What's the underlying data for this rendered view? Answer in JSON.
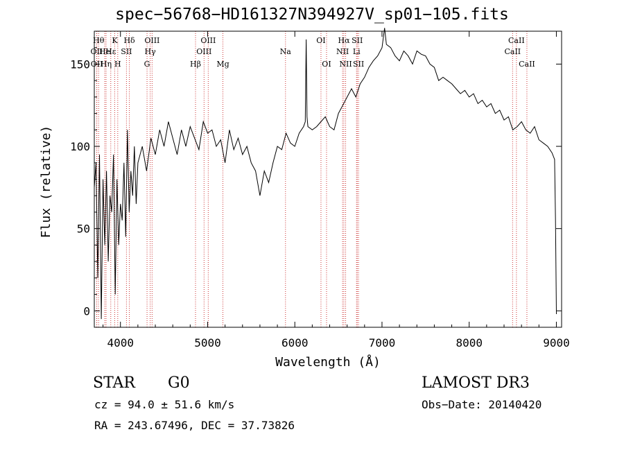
{
  "chart_data": {
    "type": "line",
    "title": "spec−56768−HD161327N394927V_sp01−105.fits",
    "xlabel": "Wavelength (Å)",
    "ylabel": "Flux (relative)",
    "xlim": [
      3700,
      9060
    ],
    "ylim": [
      -10,
      170
    ],
    "x_ticks": [
      4000,
      5000,
      6000,
      7000,
      8000,
      9000
    ],
    "y_ticks": [
      0,
      50,
      100,
      150
    ],
    "series": [
      {
        "name": "flux",
        "x": [
          3700,
          3720,
          3740,
          3760,
          3780,
          3800,
          3820,
          3840,
          3860,
          3880,
          3900,
          3920,
          3940,
          3960,
          3980,
          4000,
          4020,
          4040,
          4060,
          4080,
          4100,
          4120,
          4140,
          4160,
          4180,
          4200,
          4250,
          4300,
          4350,
          4400,
          4450,
          4500,
          4550,
          4600,
          4650,
          4700,
          4750,
          4800,
          4850,
          4900,
          4950,
          5000,
          5050,
          5100,
          5150,
          5200,
          5250,
          5300,
          5350,
          5400,
          5450,
          5500,
          5550,
          5600,
          5650,
          5700,
          5750,
          5800,
          5850,
          5900,
          5950,
          6000,
          6050,
          6100,
          6120,
          6130,
          6140,
          6150,
          6200,
          6250,
          6300,
          6350,
          6400,
          6450,
          6500,
          6550,
          6600,
          6650,
          6700,
          6750,
          6800,
          6850,
          6900,
          6950,
          7000,
          7030,
          7050,
          7100,
          7150,
          7200,
          7250,
          7300,
          7350,
          7400,
          7450,
          7500,
          7550,
          7600,
          7650,
          7700,
          7750,
          7800,
          7850,
          7900,
          7950,
          8000,
          8050,
          8100,
          8150,
          8200,
          8250,
          8300,
          8350,
          8400,
          8450,
          8500,
          8550,
          8600,
          8650,
          8700,
          8750,
          8800,
          8850,
          8900,
          8950,
          8980,
          8990,
          9000
        ],
        "y": [
          75,
          90,
          20,
          95,
          -5,
          80,
          40,
          85,
          30,
          70,
          60,
          95,
          10,
          80,
          40,
          65,
          55,
          90,
          45,
          110,
          60,
          85,
          70,
          100,
          65,
          90,
          100,
          85,
          105,
          95,
          110,
          100,
          115,
          105,
          95,
          110,
          100,
          112,
          105,
          98,
          115,
          108,
          110,
          100,
          104,
          90,
          110,
          98,
          105,
          95,
          100,
          90,
          85,
          70,
          85,
          78,
          90,
          100,
          98,
          108,
          102,
          100,
          108,
          112,
          115,
          165,
          118,
          112,
          110,
          112,
          115,
          118,
          112,
          110,
          120,
          125,
          130,
          135,
          130,
          138,
          142,
          148,
          152,
          155,
          160,
          172,
          162,
          160,
          155,
          152,
          158,
          155,
          150,
          158,
          156,
          155,
          150,
          148,
          140,
          142,
          140,
          138,
          135,
          132,
          134,
          130,
          132,
          126,
          128,
          124,
          126,
          120,
          122,
          116,
          118,
          110,
          112,
          115,
          110,
          108,
          112,
          104,
          102,
          100,
          96,
          92,
          55,
          -2
        ]
      }
    ],
    "spectral_lines": [
      {
        "label": "Hθ",
        "x": 3750,
        "row": 1
      },
      {
        "label": "OII",
        "x": 3727,
        "row": 2
      },
      {
        "label": "OII",
        "x": 3729,
        "row": 3
      },
      {
        "label": "He",
        "x": 3820,
        "row": 2
      },
      {
        "label": "Hη",
        "x": 3835,
        "row": 3
      },
      {
        "label": "K",
        "x": 3934,
        "row": 1
      },
      {
        "label": "Hε",
        "x": 3889,
        "row": 2
      },
      {
        "label": "SII",
        "x": 4069,
        "row": 2
      },
      {
        "label": "H",
        "x": 3969,
        "row": 3
      },
      {
        "label": "Hδ",
        "x": 4102,
        "row": 1
      },
      {
        "label": "OIII",
        "x": 4363,
        "row": 1
      },
      {
        "label": "Hγ",
        "x": 4341,
        "row": 2
      },
      {
        "label": "G",
        "x": 4305,
        "row": 3
      },
      {
        "label": "Hβ",
        "x": 4861,
        "row": 3
      },
      {
        "label": "OIII",
        "x": 5007,
        "row": 1
      },
      {
        "label": "OIII",
        "x": 4959,
        "row": 2
      },
      {
        "label": "Mg",
        "x": 5175,
        "row": 3
      },
      {
        "label": "Na",
        "x": 5893,
        "row": 2
      },
      {
        "label": "OI",
        "x": 6300,
        "row": 1
      },
      {
        "label": "OI",
        "x": 6364,
        "row": 3
      },
      {
        "label": "Hα",
        "x": 6563,
        "row": 1
      },
      {
        "label": "NII",
        "x": 6548,
        "row": 2
      },
      {
        "label": "NII",
        "x": 6583,
        "row": 3
      },
      {
        "label": "SII",
        "x": 6716,
        "row": 1
      },
      {
        "label": "Li",
        "x": 6708,
        "row": 2
      },
      {
        "label": "SII",
        "x": 6731,
        "row": 3
      },
      {
        "label": "CaII",
        "x": 8542,
        "row": 1
      },
      {
        "label": "CaII",
        "x": 8498,
        "row": 2
      },
      {
        "label": "CaII",
        "x": 8662,
        "row": 3
      }
    ]
  },
  "info": {
    "class": "STAR",
    "subclass": "G0",
    "survey": "LAMOST DR3",
    "cz": "cz = 94.0 ± 51.6 km/s",
    "obs_date": "Obs−Date: 20140420",
    "radec": "RA = 243.67496, DEC =  37.73826"
  },
  "colors": {
    "line": "#000000",
    "marker": "#cc3333",
    "background": "#ffffff"
  }
}
